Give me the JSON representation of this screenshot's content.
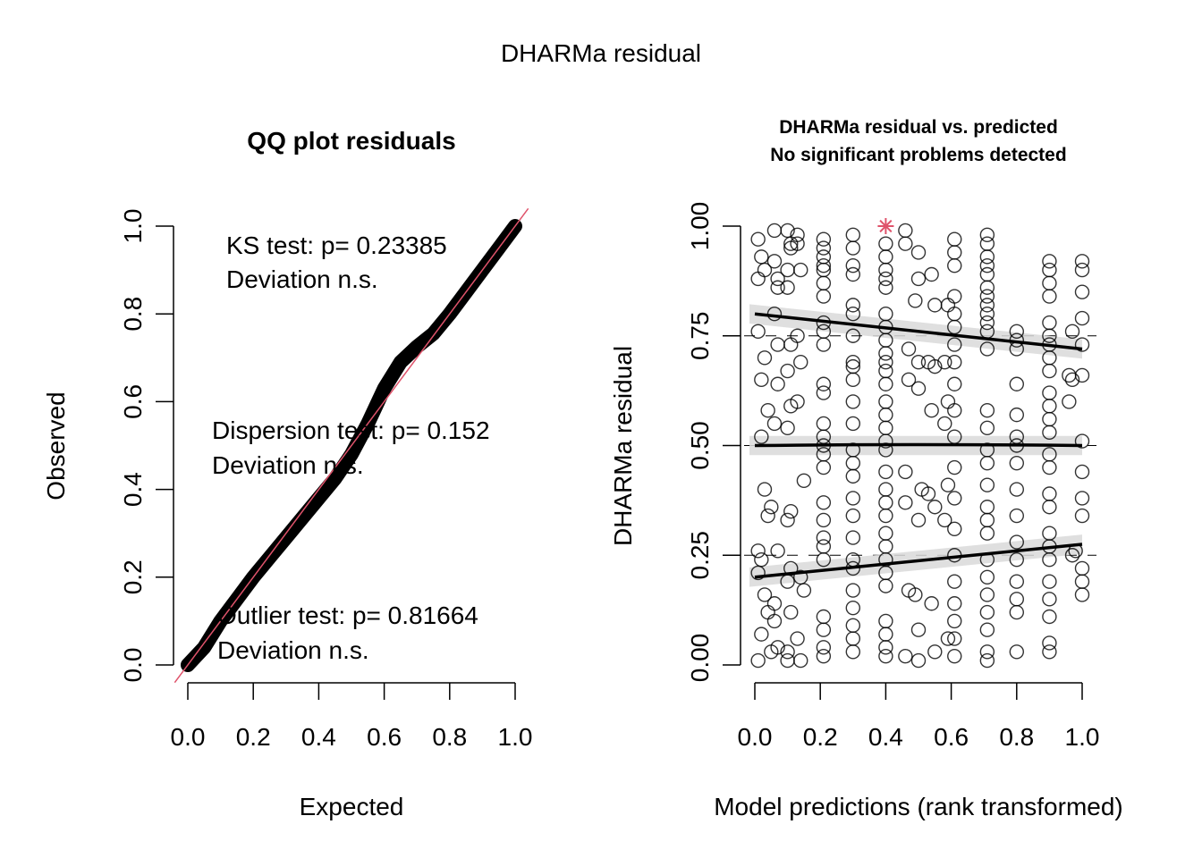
{
  "chart_data": [
    {
      "type": "line",
      "panel": "left",
      "title": "QQ plot residuals",
      "xlabel": "Expected",
      "ylabel": "Observed",
      "xlim": [
        0,
        1
      ],
      "ylim": [
        0,
        1
      ],
      "xticks": [
        "0.0",
        "0.2",
        "0.4",
        "0.6",
        "0.8",
        "1.0"
      ],
      "yticks": [
        "0.0",
        "0.2",
        "0.4",
        "0.6",
        "0.8",
        "1.0"
      ],
      "reference_line": {
        "slope": 1,
        "intercept": 0,
        "color": "#df536b"
      },
      "series": [
        {
          "name": "observed quantiles",
          "x": [
            0.0,
            0.05,
            0.1,
            0.15,
            0.2,
            0.25,
            0.3,
            0.35,
            0.4,
            0.45,
            0.5,
            0.55,
            0.6,
            0.65,
            0.7,
            0.75,
            0.8,
            0.85,
            0.9,
            0.95,
            1.0
          ],
          "y": [
            0.0,
            0.04,
            0.1,
            0.15,
            0.2,
            0.245,
            0.29,
            0.335,
            0.38,
            0.425,
            0.48,
            0.55,
            0.63,
            0.69,
            0.725,
            0.755,
            0.8,
            0.85,
            0.9,
            0.95,
            1.0
          ]
        }
      ],
      "annotations": [
        {
          "line1": "KS test: p= 0.23385",
          "line2": "Deviation  n.s."
        },
        {
          "line1": "Dispersion test: p= 0.152",
          "line2": "Deviation  n.s."
        },
        {
          "line1": "Outlier test: p= 0.81664",
          "line2": "Deviation  n.s."
        }
      ]
    },
    {
      "type": "scatter",
      "panel": "right",
      "title": "DHARMa residual vs. predicted",
      "subtitle": "No significant problems detected",
      "xlabel": "Model predictions (rank transformed)",
      "ylabel": "DHARMa residual",
      "xlim": [
        0,
        1
      ],
      "ylim": [
        0,
        1
      ],
      "xticks": [
        "0.0",
        "0.2",
        "0.4",
        "0.6",
        "0.8",
        "1.0"
      ],
      "yticks": [
        "0.00",
        "0.25",
        "0.50",
        "0.75",
        "1.00"
      ],
      "hlines": [
        0.25,
        0.5,
        0.75
      ],
      "quantile_fits": [
        {
          "quantile": 0.25,
          "y_at_x0": 0.2,
          "y_at_x1": 0.275
        },
        {
          "quantile": 0.5,
          "y_at_x0": 0.5,
          "y_at_x1": 0.5
        },
        {
          "quantile": 0.75,
          "y_at_x0": 0.8,
          "y_at_x1": 0.72
        }
      ],
      "outlier": {
        "x": 0.4,
        "y": 1.0,
        "color": "#df536b"
      },
      "points": [
        [
          0.01,
          0.97
        ],
        [
          0.01,
          0.88
        ],
        [
          0.02,
          0.93
        ],
        [
          0.03,
          0.9
        ],
        [
          0.01,
          0.76
        ],
        [
          0.02,
          0.65
        ],
        [
          0.03,
          0.7
        ],
        [
          0.02,
          0.52
        ],
        [
          0.04,
          0.58
        ],
        [
          0.01,
          0.26
        ],
        [
          0.02,
          0.24
        ],
        [
          0.01,
          0.21
        ],
        [
          0.03,
          0.16
        ],
        [
          0.02,
          0.07
        ],
        [
          0.01,
          0.01
        ],
        [
          0.04,
          0.34
        ],
        [
          0.05,
          0.36
        ],
        [
          0.03,
          0.4
        ],
        [
          0.04,
          0.12
        ],
        [
          0.05,
          0.03
        ],
        [
          0.06,
          0.99
        ],
        [
          0.06,
          0.92
        ],
        [
          0.07,
          0.86
        ],
        [
          0.07,
          0.88
        ],
        [
          0.06,
          0.8
        ],
        [
          0.07,
          0.73
        ],
        [
          0.07,
          0.64
        ],
        [
          0.06,
          0.55
        ],
        [
          0.07,
          0.26
        ],
        [
          0.06,
          0.14
        ],
        [
          0.07,
          0.04
        ],
        [
          0.06,
          0.1
        ],
        [
          0.1,
          0.99
        ],
        [
          0.11,
          0.96
        ],
        [
          0.11,
          0.95
        ],
        [
          0.1,
          0.9
        ],
        [
          0.1,
          0.86
        ],
        [
          0.11,
          0.73
        ],
        [
          0.1,
          0.67
        ],
        [
          0.11,
          0.59
        ],
        [
          0.1,
          0.54
        ],
        [
          0.11,
          0.35
        ],
        [
          0.1,
          0.33
        ],
        [
          0.11,
          0.22
        ],
        [
          0.1,
          0.19
        ],
        [
          0.11,
          0.12
        ],
        [
          0.1,
          0.03
        ],
        [
          0.1,
          0.01
        ],
        [
          0.13,
          0.98
        ],
        [
          0.13,
          0.96
        ],
        [
          0.14,
          0.9
        ],
        [
          0.13,
          0.75
        ],
        [
          0.14,
          0.69
        ],
        [
          0.13,
          0.6
        ],
        [
          0.15,
          0.42
        ],
        [
          0.14,
          0.2
        ],
        [
          0.15,
          0.17
        ],
        [
          0.13,
          0.06
        ],
        [
          0.14,
          0.01
        ],
        [
          0.21,
          0.97
        ],
        [
          0.21,
          0.95
        ],
        [
          0.21,
          0.93
        ],
        [
          0.21,
          0.91
        ],
        [
          0.21,
          0.9
        ],
        [
          0.21,
          0.87
        ],
        [
          0.21,
          0.84
        ],
        [
          0.21,
          0.78
        ],
        [
          0.21,
          0.76
        ],
        [
          0.21,
          0.73
        ],
        [
          0.21,
          0.64
        ],
        [
          0.21,
          0.62
        ],
        [
          0.21,
          0.55
        ],
        [
          0.21,
          0.52
        ],
        [
          0.21,
          0.5
        ],
        [
          0.21,
          0.48
        ],
        [
          0.21,
          0.45
        ],
        [
          0.21,
          0.37
        ],
        [
          0.21,
          0.33
        ],
        [
          0.21,
          0.29
        ],
        [
          0.21,
          0.27
        ],
        [
          0.21,
          0.24
        ],
        [
          0.21,
          0.11
        ],
        [
          0.21,
          0.08
        ],
        [
          0.21,
          0.04
        ],
        [
          0.21,
          0.02
        ],
        [
          0.3,
          0.98
        ],
        [
          0.3,
          0.95
        ],
        [
          0.3,
          0.91
        ],
        [
          0.3,
          0.89
        ],
        [
          0.3,
          0.82
        ],
        [
          0.3,
          0.8
        ],
        [
          0.3,
          0.75
        ],
        [
          0.3,
          0.69
        ],
        [
          0.3,
          0.68
        ],
        [
          0.3,
          0.65
        ],
        [
          0.3,
          0.6
        ],
        [
          0.3,
          0.55
        ],
        [
          0.3,
          0.49
        ],
        [
          0.3,
          0.46
        ],
        [
          0.3,
          0.43
        ],
        [
          0.3,
          0.38
        ],
        [
          0.3,
          0.34
        ],
        [
          0.3,
          0.29
        ],
        [
          0.3,
          0.24
        ],
        [
          0.3,
          0.22
        ],
        [
          0.3,
          0.17
        ],
        [
          0.3,
          0.13
        ],
        [
          0.3,
          0.09
        ],
        [
          0.3,
          0.06
        ],
        [
          0.3,
          0.03
        ],
        [
          0.4,
          0.96
        ],
        [
          0.4,
          0.93
        ],
        [
          0.4,
          0.9
        ],
        [
          0.4,
          0.88
        ],
        [
          0.4,
          0.86
        ],
        [
          0.4,
          0.8
        ],
        [
          0.4,
          0.77
        ],
        [
          0.4,
          0.74
        ],
        [
          0.4,
          0.71
        ],
        [
          0.4,
          0.69
        ],
        [
          0.4,
          0.67
        ],
        [
          0.4,
          0.64
        ],
        [
          0.4,
          0.6
        ],
        [
          0.4,
          0.57
        ],
        [
          0.4,
          0.54
        ],
        [
          0.4,
          0.51
        ],
        [
          0.4,
          0.49
        ],
        [
          0.4,
          0.44
        ],
        [
          0.4,
          0.4
        ],
        [
          0.4,
          0.37
        ],
        [
          0.4,
          0.34
        ],
        [
          0.4,
          0.3
        ],
        [
          0.4,
          0.27
        ],
        [
          0.4,
          0.24
        ],
        [
          0.4,
          0.21
        ],
        [
          0.4,
          0.18
        ],
        [
          0.4,
          0.1
        ],
        [
          0.4,
          0.07
        ],
        [
          0.4,
          0.04
        ],
        [
          0.4,
          0.02
        ],
        [
          0.46,
          0.99
        ],
        [
          0.46,
          0.96
        ],
        [
          0.47,
          0.72
        ],
        [
          0.47,
          0.65
        ],
        [
          0.46,
          0.44
        ],
        [
          0.46,
          0.37
        ],
        [
          0.47,
          0.17
        ],
        [
          0.46,
          0.02
        ],
        [
          0.5,
          0.94
        ],
        [
          0.5,
          0.88
        ],
        [
          0.49,
          0.83
        ],
        [
          0.5,
          0.69
        ],
        [
          0.5,
          0.63
        ],
        [
          0.51,
          0.4
        ],
        [
          0.5,
          0.33
        ],
        [
          0.49,
          0.16
        ],
        [
          0.5,
          0.08
        ],
        [
          0.5,
          0.01
        ],
        [
          0.54,
          0.89
        ],
        [
          0.55,
          0.82
        ],
        [
          0.53,
          0.69
        ],
        [
          0.55,
          0.68
        ],
        [
          0.54,
          0.58
        ],
        [
          0.53,
          0.39
        ],
        [
          0.55,
          0.36
        ],
        [
          0.54,
          0.14
        ],
        [
          0.55,
          0.03
        ],
        [
          0.59,
          0.82
        ],
        [
          0.58,
          0.69
        ],
        [
          0.59,
          0.6
        ],
        [
          0.58,
          0.55
        ],
        [
          0.59,
          0.41
        ],
        [
          0.58,
          0.33
        ],
        [
          0.59,
          0.06
        ],
        [
          0.61,
          0.97
        ],
        [
          0.61,
          0.94
        ],
        [
          0.61,
          0.91
        ],
        [
          0.61,
          0.84
        ],
        [
          0.61,
          0.8
        ],
        [
          0.61,
          0.77
        ],
        [
          0.61,
          0.73
        ],
        [
          0.61,
          0.69
        ],
        [
          0.61,
          0.64
        ],
        [
          0.61,
          0.58
        ],
        [
          0.61,
          0.52
        ],
        [
          0.61,
          0.45
        ],
        [
          0.61,
          0.38
        ],
        [
          0.61,
          0.31
        ],
        [
          0.61,
          0.25
        ],
        [
          0.61,
          0.19
        ],
        [
          0.61,
          0.14
        ],
        [
          0.61,
          0.1
        ],
        [
          0.61,
          0.06
        ],
        [
          0.61,
          0.02
        ],
        [
          0.71,
          0.98
        ],
        [
          0.71,
          0.96
        ],
        [
          0.71,
          0.93
        ],
        [
          0.71,
          0.91
        ],
        [
          0.71,
          0.89
        ],
        [
          0.71,
          0.86
        ],
        [
          0.71,
          0.84
        ],
        [
          0.71,
          0.82
        ],
        [
          0.71,
          0.8
        ],
        [
          0.71,
          0.78
        ],
        [
          0.71,
          0.76
        ],
        [
          0.71,
          0.72
        ],
        [
          0.71,
          0.58
        ],
        [
          0.71,
          0.54
        ],
        [
          0.71,
          0.49
        ],
        [
          0.71,
          0.46
        ],
        [
          0.71,
          0.41
        ],
        [
          0.71,
          0.36
        ],
        [
          0.71,
          0.33
        ],
        [
          0.71,
          0.3
        ],
        [
          0.71,
          0.24
        ],
        [
          0.71,
          0.2
        ],
        [
          0.71,
          0.16
        ],
        [
          0.71,
          0.12
        ],
        [
          0.71,
          0.08
        ],
        [
          0.71,
          0.03
        ],
        [
          0.71,
          0.01
        ],
        [
          0.8,
          0.76
        ],
        [
          0.8,
          0.74
        ],
        [
          0.8,
          0.72
        ],
        [
          0.8,
          0.64
        ],
        [
          0.8,
          0.57
        ],
        [
          0.8,
          0.52
        ],
        [
          0.8,
          0.5
        ],
        [
          0.8,
          0.46
        ],
        [
          0.8,
          0.4
        ],
        [
          0.8,
          0.34
        ],
        [
          0.8,
          0.28
        ],
        [
          0.8,
          0.24
        ],
        [
          0.8,
          0.19
        ],
        [
          0.8,
          0.15
        ],
        [
          0.8,
          0.12
        ],
        [
          0.8,
          0.03
        ],
        [
          0.9,
          0.92
        ],
        [
          0.9,
          0.9
        ],
        [
          0.9,
          0.87
        ],
        [
          0.9,
          0.84
        ],
        [
          0.9,
          0.78
        ],
        [
          0.9,
          0.75
        ],
        [
          0.9,
          0.73
        ],
        [
          0.9,
          0.7
        ],
        [
          0.9,
          0.67
        ],
        [
          0.9,
          0.62
        ],
        [
          0.9,
          0.59
        ],
        [
          0.9,
          0.56
        ],
        [
          0.9,
          0.53
        ],
        [
          0.9,
          0.48
        ],
        [
          0.9,
          0.45
        ],
        [
          0.9,
          0.39
        ],
        [
          0.9,
          0.36
        ],
        [
          0.9,
          0.3
        ],
        [
          0.9,
          0.27
        ],
        [
          0.9,
          0.24
        ],
        [
          0.9,
          0.19
        ],
        [
          0.9,
          0.15
        ],
        [
          0.9,
          0.11
        ],
        [
          0.9,
          0.05
        ],
        [
          0.9,
          0.03
        ],
        [
          0.97,
          0.76
        ],
        [
          0.96,
          0.66
        ],
        [
          0.97,
          0.65
        ],
        [
          0.96,
          0.6
        ],
        [
          0.98,
          0.26
        ],
        [
          0.97,
          0.25
        ],
        [
          1.0,
          0.92
        ],
        [
          1.0,
          0.9
        ],
        [
          1.0,
          0.85
        ],
        [
          1.0,
          0.79
        ],
        [
          1.0,
          0.73
        ],
        [
          1.0,
          0.66
        ],
        [
          1.0,
          0.51
        ],
        [
          1.0,
          0.44
        ],
        [
          1.0,
          0.38
        ],
        [
          1.0,
          0.34
        ],
        [
          1.0,
          0.22
        ],
        [
          1.0,
          0.19
        ],
        [
          1.0,
          0.16
        ]
      ]
    }
  ],
  "figure": {
    "suptitle": "DHARMa residual"
  }
}
